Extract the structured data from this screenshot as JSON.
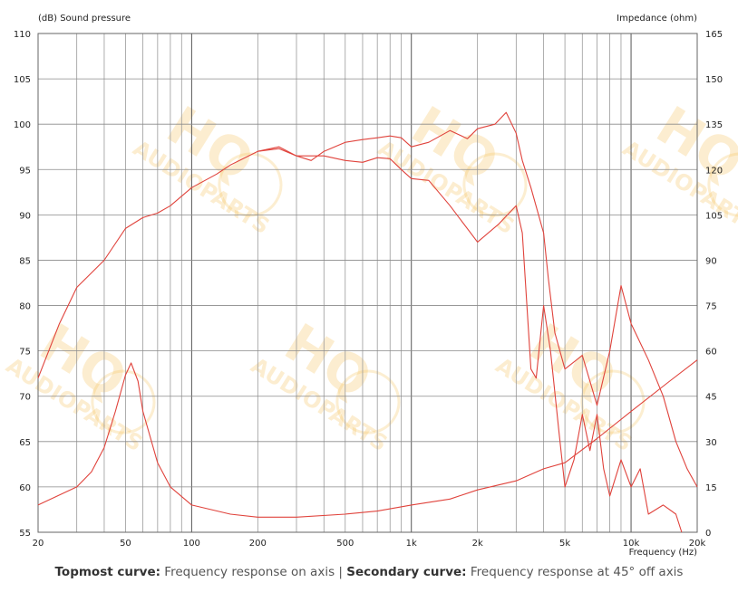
{
  "chart_data": {
    "type": "line",
    "left_axis_label": "(dB)  Sound pressure",
    "right_axis_label": "Impedance  (ohm)",
    "xlabel": "Frequency  (Hz)",
    "x_scale": "log",
    "xlim": [
      20,
      20000
    ],
    "ylim_left": [
      55,
      110
    ],
    "ylim_right": [
      0,
      165
    ],
    "grid": true,
    "x_ticks": [
      {
        "value": 20,
        "label": "20"
      },
      {
        "value": 50,
        "label": "50"
      },
      {
        "value": 100,
        "label": "100"
      },
      {
        "value": 200,
        "label": "200"
      },
      {
        "value": 500,
        "label": "500"
      },
      {
        "value": 1000,
        "label": "1k"
      },
      {
        "value": 2000,
        "label": "2k"
      },
      {
        "value": 5000,
        "label": "5k"
      },
      {
        "value": 10000,
        "label": "10k"
      },
      {
        "value": 20000,
        "label": "20k"
      }
    ],
    "y_ticks_left": [
      110,
      105,
      100,
      95,
      90,
      85,
      80,
      75,
      70,
      65,
      60,
      55
    ],
    "y_ticks_right": [
      165,
      150,
      135,
      120,
      105,
      90,
      75,
      60,
      45,
      30,
      15,
      0
    ],
    "series": [
      {
        "axis": "left",
        "color": "#e0433c",
        "points": [
          [
            20,
            72
          ],
          [
            25,
            78
          ],
          [
            30,
            82
          ],
          [
            40,
            85
          ],
          [
            50,
            88.5
          ],
          [
            60,
            89.7
          ],
          [
            70,
            90.2
          ],
          [
            80,
            91
          ],
          [
            100,
            93
          ],
          [
            130,
            94.5
          ],
          [
            150,
            95.5
          ],
          [
            200,
            97
          ],
          [
            250,
            97.5
          ],
          [
            300,
            96.5
          ],
          [
            350,
            96
          ],
          [
            400,
            97
          ],
          [
            500,
            98
          ],
          [
            600,
            98.3
          ],
          [
            700,
            98.5
          ],
          [
            800,
            98.7
          ],
          [
            900,
            98.5
          ],
          [
            1000,
            97.5
          ],
          [
            1200,
            98
          ],
          [
            1500,
            99.3
          ],
          [
            1800,
            98.4
          ],
          [
            2000,
            99.5
          ],
          [
            2400,
            100
          ],
          [
            2700,
            101.3
          ],
          [
            3000,
            99
          ],
          [
            3200,
            96
          ],
          [
            3500,
            93
          ],
          [
            4000,
            88
          ],
          [
            4200,
            83
          ],
          [
            4500,
            77
          ],
          [
            5000,
            73
          ],
          [
            6000,
            74.5
          ],
          [
            7000,
            69
          ],
          [
            8000,
            75
          ],
          [
            9000,
            82.2
          ],
          [
            10000,
            78
          ],
          [
            12000,
            74
          ],
          [
            14000,
            70
          ],
          [
            16000,
            65
          ],
          [
            18000,
            62
          ],
          [
            20000,
            60
          ]
        ]
      },
      {
        "axis": "left",
        "color": "#e0433c",
        "points": [
          [
            200,
            97
          ],
          [
            250,
            97.3
          ],
          [
            300,
            96.5
          ],
          [
            400,
            96.5
          ],
          [
            500,
            96
          ],
          [
            600,
            95.8
          ],
          [
            700,
            96.3
          ],
          [
            800,
            96.2
          ],
          [
            900,
            95
          ],
          [
            1000,
            94
          ],
          [
            1200,
            93.8
          ],
          [
            1500,
            91
          ],
          [
            2000,
            87
          ],
          [
            2500,
            89
          ],
          [
            3000,
            91
          ],
          [
            3200,
            88
          ],
          [
            3500,
            73
          ],
          [
            3700,
            72
          ],
          [
            4000,
            80
          ],
          [
            4300,
            75
          ],
          [
            4700,
            66
          ],
          [
            5000,
            60
          ],
          [
            5500,
            63
          ],
          [
            6000,
            68
          ],
          [
            6500,
            64
          ],
          [
            7000,
            68
          ],
          [
            7500,
            62
          ],
          [
            8000,
            59
          ],
          [
            9000,
            63
          ],
          [
            10000,
            60
          ],
          [
            11000,
            62
          ],
          [
            12000,
            57
          ],
          [
            14000,
            58
          ],
          [
            16000,
            57
          ],
          [
            17000,
            55
          ]
        ]
      },
      {
        "axis": "right",
        "color": "#e0433c",
        "points": [
          [
            20,
            9
          ],
          [
            30,
            15
          ],
          [
            35,
            20
          ],
          [
            40,
            28
          ],
          [
            45,
            40
          ],
          [
            50,
            52
          ],
          [
            53,
            56
          ],
          [
            57,
            50
          ],
          [
            60,
            40
          ],
          [
            70,
            23
          ],
          [
            80,
            15
          ],
          [
            100,
            9
          ],
          [
            150,
            6
          ],
          [
            200,
            5
          ],
          [
            300,
            5
          ],
          [
            500,
            6
          ],
          [
            700,
            7
          ],
          [
            1000,
            9
          ],
          [
            1500,
            11
          ],
          [
            2000,
            14
          ],
          [
            3000,
            17
          ],
          [
            4000,
            21
          ],
          [
            5000,
            23
          ],
          [
            7000,
            31
          ],
          [
            10000,
            40
          ],
          [
            15000,
            50
          ],
          [
            20000,
            57
          ]
        ]
      }
    ]
  },
  "caption": {
    "part1_bold": "Topmost curve:",
    "part1_text": " Frequency response on axis | ",
    "part2_bold": "Secondary curve:",
    "part2_text": " Frequency response at 45° off axis"
  },
  "watermark": {
    "line1": "HQ",
    "line2": "AUDIOPARTS",
    "color": "#f6c25a"
  }
}
